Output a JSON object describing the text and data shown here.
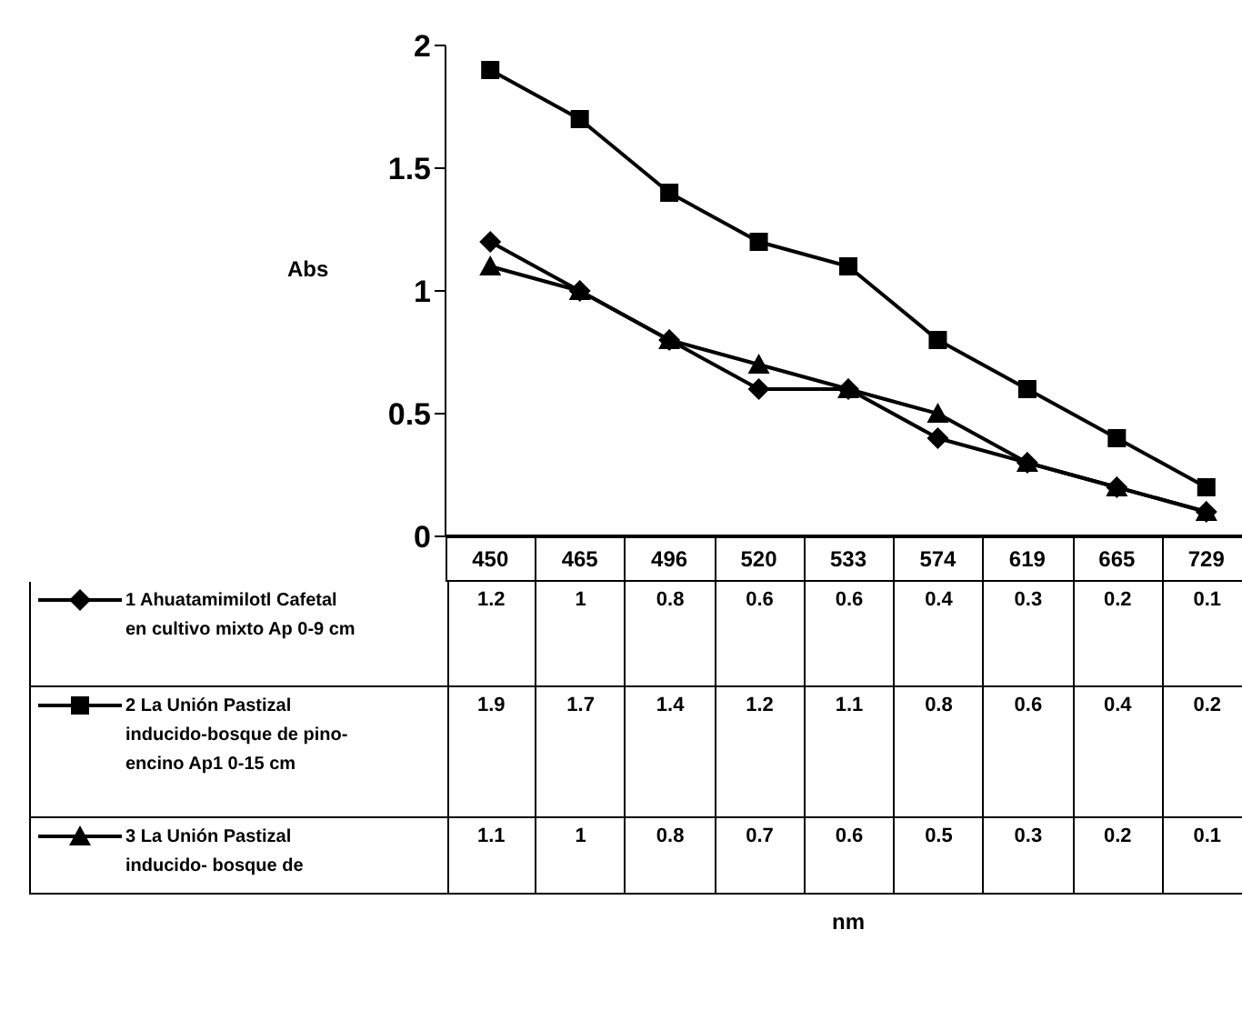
{
  "chart_data": {
    "type": "line",
    "annotations": [
      "nm"
    ],
    "ylabel": "Abs",
    "categories": [
      "450",
      "465",
      "496",
      "520",
      "533",
      "574",
      "619",
      "665",
      "729"
    ],
    "ylim": [
      0,
      2
    ],
    "yticks": [
      0,
      0.5,
      1,
      1.5,
      2
    ],
    "legend": "bottom",
    "data_labels": true,
    "line_style": "solid",
    "series": [
      {
        "name": "1 Ahuatamimilotl Cafetal en cultivo mixto Ap 0-9 cm",
        "color": "#000000",
        "marker": "diamond",
        "values": [
          1.2,
          1,
          0.8,
          0.6,
          0.6,
          0.4,
          0.3,
          0.2,
          0.1
        ]
      },
      {
        "name": "2 La Unión Pastizal inducido-bosque de pino-encino Ap1 0-15 cm",
        "color": "#000000",
        "marker": "square",
        "values": [
          1.9,
          1.7,
          1.4,
          1.2,
          1.1,
          0.8,
          0.6,
          0.4,
          0.2
        ]
      },
      {
        "name": "3 La Unión Pastizal inducido- bosque de",
        "color": "#000000",
        "marker": "triangle",
        "values": [
          1.1,
          1,
          0.8,
          0.7,
          0.6,
          0.5,
          0.3,
          0.2,
          0.1
        ]
      }
    ]
  }
}
